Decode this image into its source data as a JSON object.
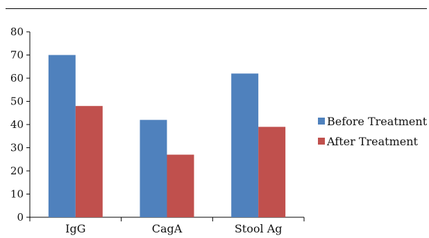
{
  "chart_data": {
    "type": "bar",
    "categories": [
      "IgG",
      "CagA",
      "Stool Ag"
    ],
    "series": [
      {
        "name": "Before Treatment",
        "values": [
          70,
          42,
          62
        ],
        "color": "#4f81bd"
      },
      {
        "name": "After Treatment",
        "values": [
          48,
          27,
          39
        ],
        "color": "#c0504d"
      }
    ],
    "ylim": [
      0,
      80
    ],
    "yticks": [
      0,
      10,
      20,
      30,
      40,
      50,
      60,
      70,
      80
    ],
    "grid": false,
    "legend_position": "right"
  }
}
